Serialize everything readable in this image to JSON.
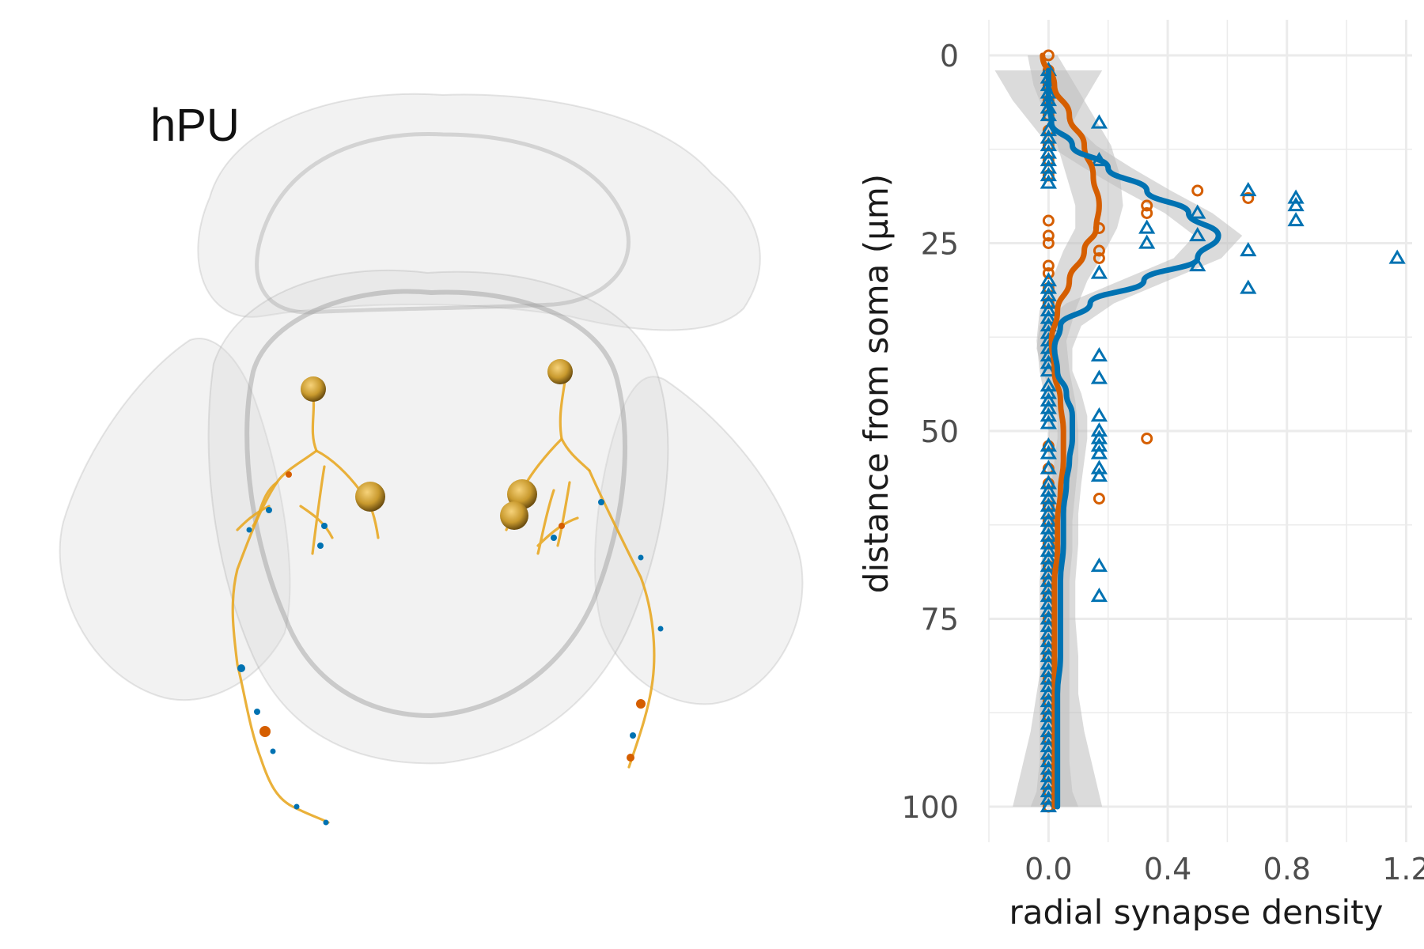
{
  "panel_label": "hPU",
  "colors": {
    "neuron": "#e8a825",
    "soma": "#c99a2e",
    "input_synapse": "#d55e00",
    "output_synapse": "#0072b2",
    "mesh": "#d9d9d9",
    "ribbon": "#bdbdbd",
    "grid": "#ebebeb"
  },
  "chart_data": {
    "type": "scatter",
    "title": "",
    "xlabel": "radial synapse density",
    "ylabel": "distance from soma (µm)",
    "xlim": [
      -0.2,
      1.22
    ],
    "ylim": [
      0,
      100
    ],
    "y_reversed": true,
    "grid": true,
    "legend": "none",
    "x_ticks": [
      "0.0",
      "0.4",
      "0.8",
      "1.2"
    ],
    "y_ticks": [
      "0",
      "25",
      "50",
      "75",
      "100"
    ],
    "series": [
      {
        "marker": "circle",
        "color": "#d55e00",
        "points": [
          [
            0,
            0
          ],
          [
            0,
            2
          ],
          [
            0,
            4
          ],
          [
            0,
            6
          ],
          [
            0,
            8
          ],
          [
            0,
            10
          ],
          [
            0,
            12
          ],
          [
            0,
            14
          ],
          [
            0,
            16
          ],
          [
            0,
            22
          ],
          [
            0,
            24
          ],
          [
            0,
            25
          ],
          [
            0,
            28
          ],
          [
            0,
            29
          ],
          [
            0,
            31
          ],
          [
            0,
            33
          ],
          [
            0.5,
            18
          ],
          [
            0.67,
            19
          ],
          [
            0.33,
            20
          ],
          [
            0.33,
            21
          ],
          [
            0.17,
            23
          ],
          [
            0.17,
            26
          ],
          [
            0.17,
            27
          ],
          [
            0.33,
            51
          ],
          [
            0.17,
            59
          ],
          [
            0,
            52
          ],
          [
            0,
            55
          ],
          [
            0,
            57
          ],
          [
            0,
            60
          ],
          [
            0,
            62
          ],
          [
            0,
            65
          ],
          [
            0,
            68
          ],
          [
            0,
            70
          ],
          [
            0,
            72
          ],
          [
            0,
            75
          ],
          [
            0,
            78
          ],
          [
            0,
            80
          ],
          [
            0,
            83
          ],
          [
            0,
            86
          ],
          [
            0,
            88
          ],
          [
            0,
            91
          ],
          [
            0,
            94
          ],
          [
            0,
            96
          ],
          [
            0,
            98
          ],
          [
            0,
            100
          ]
        ]
      },
      {
        "marker": "triangle",
        "color": "#0072b2",
        "points": [
          [
            0,
            2
          ],
          [
            0,
            3
          ],
          [
            0,
            4
          ],
          [
            0,
            5
          ],
          [
            0,
            6
          ],
          [
            0,
            7
          ],
          [
            0,
            8
          ],
          [
            0,
            10
          ],
          [
            0,
            11
          ],
          [
            0,
            12
          ],
          [
            0,
            13
          ],
          [
            0,
            14
          ],
          [
            0,
            15
          ],
          [
            0,
            16
          ],
          [
            0,
            17
          ],
          [
            0.17,
            9
          ],
          [
            0.17,
            14
          ],
          [
            0.67,
            18
          ],
          [
            0.83,
            19
          ],
          [
            0.83,
            20
          ],
          [
            0.5,
            21
          ],
          [
            0.83,
            22
          ],
          [
            0.33,
            23
          ],
          [
            0.5,
            24
          ],
          [
            0.33,
            25
          ],
          [
            0.67,
            26
          ],
          [
            1.17,
            27
          ],
          [
            0.5,
            28
          ],
          [
            0.17,
            29
          ],
          [
            0.67,
            31
          ],
          [
            0,
            30
          ],
          [
            0,
            31
          ],
          [
            0,
            32
          ],
          [
            0,
            33
          ],
          [
            0,
            34
          ],
          [
            0,
            35
          ],
          [
            0,
            36
          ],
          [
            0,
            37
          ],
          [
            0,
            38
          ],
          [
            0,
            39
          ],
          [
            0,
            40
          ],
          [
            0,
            41
          ],
          [
            0,
            42
          ],
          [
            0.17,
            40
          ],
          [
            0.17,
            43
          ],
          [
            0,
            44
          ],
          [
            0,
            45
          ],
          [
            0,
            46
          ],
          [
            0,
            47
          ],
          [
            0,
            48
          ],
          [
            0,
            49
          ],
          [
            0.17,
            48
          ],
          [
            0.17,
            50
          ],
          [
            0.17,
            51
          ],
          [
            0.17,
            52
          ],
          [
            0.17,
            53
          ],
          [
            0.17,
            55
          ],
          [
            0.17,
            56
          ],
          [
            0,
            52
          ],
          [
            0,
            53
          ],
          [
            0,
            55
          ],
          [
            0,
            57
          ],
          [
            0,
            58
          ],
          [
            0,
            59
          ],
          [
            0,
            60
          ],
          [
            0,
            61
          ],
          [
            0,
            62
          ],
          [
            0,
            63
          ],
          [
            0,
            64
          ],
          [
            0,
            65
          ],
          [
            0,
            66
          ],
          [
            0,
            67
          ],
          [
            0,
            68
          ],
          [
            0,
            69
          ],
          [
            0,
            70
          ],
          [
            0,
            71
          ],
          [
            0,
            72
          ],
          [
            0.17,
            68
          ],
          [
            0.17,
            72
          ],
          [
            0,
            73
          ],
          [
            0,
            74
          ],
          [
            0,
            75
          ],
          [
            0,
            76
          ],
          [
            0,
            77
          ],
          [
            0,
            78
          ],
          [
            0,
            79
          ],
          [
            0,
            80
          ],
          [
            0,
            81
          ],
          [
            0,
            82
          ],
          [
            0,
            83
          ],
          [
            0,
            84
          ],
          [
            0,
            85
          ],
          [
            0,
            86
          ],
          [
            0,
            87
          ],
          [
            0,
            88
          ],
          [
            0,
            89
          ],
          [
            0,
            90
          ],
          [
            0,
            91
          ],
          [
            0,
            92
          ],
          [
            0,
            93
          ],
          [
            0,
            94
          ],
          [
            0,
            95
          ],
          [
            0,
            96
          ],
          [
            0,
            97
          ],
          [
            0,
            98
          ],
          [
            0,
            99
          ],
          [
            0,
            100
          ]
        ]
      }
    ],
    "smooth": [
      {
        "color": "#d55e00",
        "curve": [
          [
            -0.02,
            0
          ],
          [
            0.02,
            4
          ],
          [
            0.07,
            8
          ],
          [
            0.12,
            12
          ],
          [
            0.15,
            16
          ],
          [
            0.17,
            20
          ],
          [
            0.16,
            23
          ],
          [
            0.12,
            26
          ],
          [
            0.07,
            30
          ],
          [
            0.03,
            34
          ],
          [
            0.01,
            38
          ],
          [
            0.02,
            42
          ],
          [
            0.04,
            46
          ],
          [
            0.05,
            50
          ],
          [
            0.05,
            54
          ],
          [
            0.04,
            58
          ],
          [
            0.03,
            62
          ],
          [
            0.03,
            66
          ],
          [
            0.02,
            70
          ],
          [
            0.02,
            74
          ],
          [
            0.02,
            78
          ],
          [
            0.02,
            82
          ],
          [
            0.02,
            86
          ],
          [
            0.02,
            90
          ],
          [
            0.02,
            94
          ],
          [
            0.02,
            98
          ],
          [
            0.02,
            100
          ]
        ],
        "band": [
          0.05,
          0.07,
          0.08,
          0.09,
          0.09,
          0.08,
          0.07,
          0.07,
          0.06,
          0.06,
          0.05,
          0.05,
          0.05,
          0.05,
          0.05,
          0.05,
          0.05,
          0.05,
          0.05,
          0.05,
          0.05,
          0.05,
          0.05,
          0.05,
          0.05,
          0.06,
          0.08
        ]
      },
      {
        "color": "#0072b2",
        "curve": [
          [
            0,
            2
          ],
          [
            0,
            6
          ],
          [
            0.01,
            9
          ],
          [
            0.08,
            12
          ],
          [
            0.2,
            15
          ],
          [
            0.33,
            18
          ],
          [
            0.47,
            21
          ],
          [
            0.57,
            24
          ],
          [
            0.5,
            27
          ],
          [
            0.32,
            30
          ],
          [
            0.14,
            33
          ],
          [
            0.04,
            36
          ],
          [
            0.02,
            39
          ],
          [
            0.03,
            42
          ],
          [
            0.06,
            45
          ],
          [
            0.08,
            48
          ],
          [
            0.08,
            51
          ],
          [
            0.07,
            54
          ],
          [
            0.06,
            57
          ],
          [
            0.05,
            61
          ],
          [
            0.05,
            65
          ],
          [
            0.04,
            70
          ],
          [
            0.04,
            75
          ],
          [
            0.04,
            80
          ],
          [
            0.03,
            85
          ],
          [
            0.03,
            90
          ],
          [
            0.03,
            95
          ],
          [
            0.03,
            100
          ]
        ],
        "band": [
          0.18,
          0.12,
          0.07,
          0.08,
          0.08,
          0.08,
          0.08,
          0.08,
          0.08,
          0.08,
          0.08,
          0.07,
          0.06,
          0.05,
          0.05,
          0.05,
          0.05,
          0.05,
          0.05,
          0.05,
          0.05,
          0.05,
          0.05,
          0.06,
          0.07,
          0.09,
          0.12,
          0.15
        ]
      }
    ]
  }
}
